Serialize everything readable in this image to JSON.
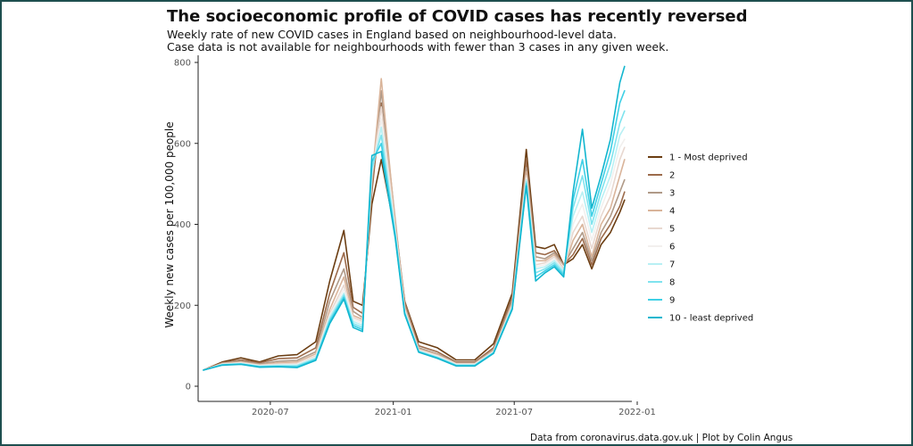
{
  "chart_data": {
    "type": "line",
    "title": "The socioeconomic profile of COVID cases has recently reversed",
    "subtitle_lines": [
      "Weekly rate of new COVID cases in England based on neighbourhood-level data.",
      "Case data is not available for neighbourhoods with fewer than 3 cases in any given week."
    ],
    "caption": "Data from coronavirus.data.gov.uk | Plot by Colin Angus",
    "ylabel": "Weekly new cases per 100,000 people",
    "xlabel": "",
    "ylim": [
      0,
      800
    ],
    "xlim": [
      "2020-03-23",
      "2021-12-20"
    ],
    "y_ticks": [
      0,
      200,
      400,
      600,
      800
    ],
    "x_ticks": [
      {
        "date": "2020-07-01",
        "label": "2020-07"
      },
      {
        "date": "2021-01-01",
        "label": "2021-01"
      },
      {
        "date": "2021-07-01",
        "label": "2021-07"
      },
      {
        "date": "2022-01-01",
        "label": "2022-01"
      }
    ],
    "grid": false,
    "legend_position": "right",
    "dates": [
      "2020-03-23",
      "2020-04-20",
      "2020-05-18",
      "2020-06-15",
      "2020-07-13",
      "2020-08-10",
      "2020-09-07",
      "2020-09-28",
      "2020-10-19",
      "2020-11-02",
      "2020-11-16",
      "2020-11-30",
      "2020-12-14",
      "2021-01-04",
      "2021-01-18",
      "2021-02-08",
      "2021-03-08",
      "2021-04-05",
      "2021-05-03",
      "2021-05-31",
      "2021-06-28",
      "2021-07-19",
      "2021-08-02",
      "2021-08-16",
      "2021-08-30",
      "2021-09-13",
      "2021-09-27",
      "2021-10-11",
      "2021-10-25",
      "2021-11-08",
      "2021-11-22",
      "2021-12-06",
      "2021-12-13"
    ],
    "series": [
      {
        "name": "1 - Most deprived",
        "color": "#6b3d12",
        "values": [
          40,
          60,
          70,
          60,
          75,
          78,
          110,
          260,
          385,
          210,
          200,
          450,
          560,
          380,
          210,
          110,
          95,
          65,
          65,
          105,
          230,
          585,
          345,
          340,
          350,
          300,
          315,
          350,
          290,
          350,
          380,
          430,
          460
        ]
      },
      {
        "name": "2",
        "color": "#9c6b4b",
        "values": [
          40,
          58,
          65,
          58,
          68,
          70,
          95,
          230,
          330,
          195,
          180,
          480,
          700,
          400,
          210,
          100,
          85,
          60,
          60,
          95,
          220,
          560,
          330,
          325,
          335,
          300,
          325,
          365,
          300,
          365,
          400,
          445,
          480
        ]
      },
      {
        "name": "3",
        "color": "#b09a88",
        "values": [
          40,
          57,
          62,
          55,
          62,
          64,
          85,
          210,
          290,
          185,
          170,
          500,
          730,
          410,
          200,
          95,
          80,
          58,
          58,
          90,
          210,
          540,
          320,
          315,
          330,
          300,
          340,
          380,
          310,
          380,
          420,
          480,
          510
        ]
      },
      {
        "name": "4",
        "color": "#d9b49a",
        "values": [
          40,
          56,
          60,
          53,
          58,
          60,
          80,
          190,
          270,
          175,
          165,
          510,
          760,
          400,
          195,
          92,
          78,
          56,
          56,
          88,
          205,
          530,
          310,
          310,
          325,
          290,
          360,
          400,
          320,
          400,
          440,
          520,
          560
        ]
      },
      {
        "name": "5",
        "color": "#e8d8d0",
        "values": [
          40,
          55,
          58,
          52,
          55,
          56,
          75,
          180,
          250,
          170,
          160,
          520,
          690,
          390,
          190,
          90,
          76,
          55,
          55,
          86,
          200,
          520,
          300,
          305,
          320,
          290,
          380,
          420,
          340,
          420,
          470,
          560,
          590
        ]
      },
      {
        "name": "6",
        "color": "#f2f0ee",
        "values": [
          40,
          54,
          57,
          51,
          53,
          54,
          72,
          175,
          240,
          165,
          155,
          525,
          660,
          385,
          188,
          88,
          74,
          54,
          54,
          85,
          198,
          515,
          295,
          300,
          315,
          285,
          400,
          450,
          360,
          440,
          500,
          590,
          610
        ]
      },
      {
        "name": "7",
        "color": "#b8f0f4",
        "values": [
          40,
          54,
          56,
          50,
          52,
          52,
          70,
          170,
          230,
          160,
          150,
          530,
          640,
          380,
          185,
          87,
          72,
          53,
          53,
          84,
          196,
          510,
          290,
          295,
          310,
          285,
          420,
          480,
          380,
          460,
          520,
          620,
          640
        ]
      },
      {
        "name": "8",
        "color": "#7fe3ee",
        "values": [
          40,
          53,
          55,
          49,
          50,
          50,
          68,
          165,
          225,
          155,
          145,
          540,
          620,
          375,
          182,
          86,
          71,
          52,
          52,
          83,
          194,
          505,
          280,
          290,
          305,
          280,
          440,
          520,
          400,
          480,
          550,
          650,
          680
        ]
      },
      {
        "name": "9",
        "color": "#3fd0e6",
        "values": [
          40,
          53,
          55,
          48,
          49,
          48,
          66,
          160,
          220,
          150,
          140,
          555,
          600,
          370,
          180,
          85,
          70,
          51,
          51,
          82,
          192,
          500,
          270,
          285,
          300,
          275,
          460,
          560,
          420,
          500,
          580,
          700,
          730
        ]
      },
      {
        "name": "10 - least deprived",
        "color": "#12b6cf",
        "values": [
          40,
          52,
          54,
          47,
          48,
          46,
          64,
          155,
          215,
          145,
          135,
          570,
          580,
          365,
          178,
          84,
          69,
          50,
          50,
          81,
          190,
          495,
          260,
          280,
          295,
          270,
          480,
          635,
          440,
          520,
          610,
          750,
          790
        ]
      }
    ]
  }
}
